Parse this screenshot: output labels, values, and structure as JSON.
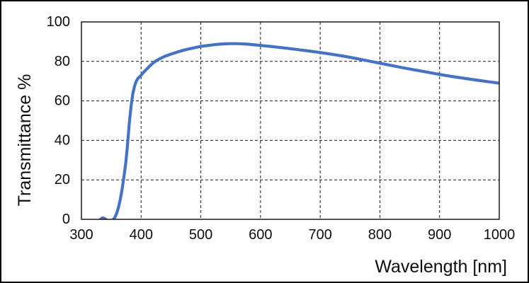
{
  "chart_data": {
    "type": "line",
    "title": "",
    "xlabel": "Wavelength [nm]",
    "ylabel": "Transmittance %",
    "xlim": [
      300,
      1000
    ],
    "ylim": [
      0,
      100
    ],
    "xticks": [
      300,
      400,
      500,
      600,
      700,
      800,
      900,
      1000
    ],
    "yticks": [
      0,
      20,
      40,
      60,
      80,
      100
    ],
    "grid": "dashed-both-axes",
    "legend": "none",
    "line_color": "#4472C4",
    "series": [
      {
        "name": "Transmittance",
        "points": [
          [
            330,
            -0.5
          ],
          [
            333,
            0.3
          ],
          [
            336,
            0.8
          ],
          [
            339,
            0.4
          ],
          [
            342,
            -0.3
          ],
          [
            346,
            -0.8
          ],
          [
            350,
            -0.8
          ],
          [
            353,
            -0.2
          ],
          [
            355,
            0.5
          ],
          [
            357,
            1.5
          ],
          [
            359,
            3
          ],
          [
            362,
            6
          ],
          [
            365,
            10
          ],
          [
            368,
            15
          ],
          [
            371,
            21
          ],
          [
            374,
            28
          ],
          [
            377,
            37
          ],
          [
            380,
            48
          ],
          [
            383,
            57
          ],
          [
            386,
            63.5
          ],
          [
            389,
            67.5
          ],
          [
            392,
            70
          ],
          [
            395,
            71.5
          ],
          [
            400,
            73
          ],
          [
            405,
            74.8
          ],
          [
            410,
            76.3
          ],
          [
            415,
            77.8
          ],
          [
            420,
            79.2
          ],
          [
            425,
            80.3
          ],
          [
            430,
            81.2
          ],
          [
            440,
            82.6
          ],
          [
            450,
            83.7
          ],
          [
            460,
            84.7
          ],
          [
            470,
            85.6
          ],
          [
            480,
            86.3
          ],
          [
            490,
            87
          ],
          [
            500,
            87.6
          ],
          [
            510,
            88
          ],
          [
            520,
            88.4
          ],
          [
            530,
            88.7
          ],
          [
            540,
            88.9
          ],
          [
            550,
            89
          ],
          [
            560,
            89
          ],
          [
            570,
            88.9
          ],
          [
            580,
            88.7
          ],
          [
            590,
            88.4
          ],
          [
            600,
            88.1
          ],
          [
            620,
            87.5
          ],
          [
            640,
            86.8
          ],
          [
            660,
            86.1
          ],
          [
            680,
            85.3
          ],
          [
            700,
            84.5
          ],
          [
            720,
            83.6
          ],
          [
            740,
            82.6
          ],
          [
            760,
            81.5
          ],
          [
            780,
            80.3
          ],
          [
            800,
            79.1
          ],
          [
            820,
            77.9
          ],
          [
            840,
            76.7
          ],
          [
            860,
            75.6
          ],
          [
            880,
            74.5
          ],
          [
            900,
            73.4
          ],
          [
            920,
            72.4
          ],
          [
            940,
            71.5
          ],
          [
            960,
            70.6
          ],
          [
            980,
            69.8
          ],
          [
            1000,
            69
          ]
        ]
      }
    ]
  },
  "colors": {
    "background": "#ffffff",
    "outer_border": "#000000",
    "plot_border": "#1a1a1a",
    "gridline": "#1a1a1a",
    "text": "#0d0d0d",
    "line": "#4472C4"
  }
}
